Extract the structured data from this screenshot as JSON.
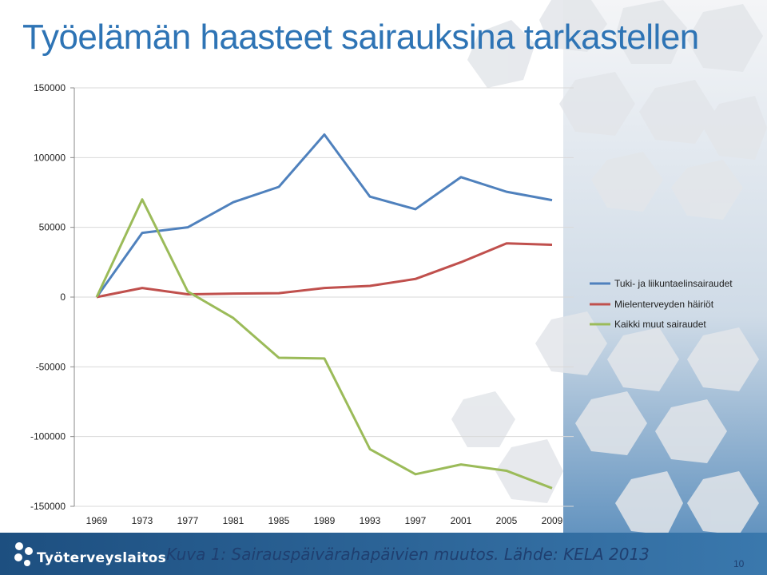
{
  "slide": {
    "title": "Työelämän haasteet sairauksina tarkastellen",
    "caption": "Kuva 1: Sairauspäivärahapäivien muutos. Lähde: KELA 2013",
    "logo_text": "Työterveyslaitos",
    "page_number": "10",
    "colors": {
      "title": "#2e74b5",
      "footer_band": "#2b5f8f",
      "caption": "#1f3f70"
    }
  },
  "chart_data": {
    "type": "line",
    "categories": [
      "1969",
      "1973",
      "1977",
      "1981",
      "1985",
      "1989",
      "1993",
      "1997",
      "2001",
      "2005",
      "2009"
    ],
    "y_ticks": [
      "150000",
      "100000",
      "50000",
      "0",
      "-50000",
      "-100000",
      "-150000"
    ],
    "ylim": [
      -150000,
      150000
    ],
    "grid": true,
    "legend_position": "right",
    "series": [
      {
        "name": "Tuki- ja liikuntaelinsairaudet",
        "color": "#4f81bd",
        "values": [
          0,
          46000,
          50000,
          68000,
          79000,
          116500,
          72000,
          63000,
          86000,
          75500,
          69500
        ]
      },
      {
        "name": "Mielenterveyden häiriöt",
        "color": "#c0504d",
        "values": [
          0,
          6500,
          2000,
          2500,
          2800,
          6500,
          8000,
          13000,
          25000,
          38500,
          37500
        ]
      },
      {
        "name": "Kaikki muut sairaudet",
        "color": "#9bbb59",
        "values": [
          0,
          70000,
          4000,
          -15000,
          -43500,
          -44000,
          -109000,
          -127000,
          -120000,
          -124500,
          -137000
        ]
      }
    ]
  }
}
